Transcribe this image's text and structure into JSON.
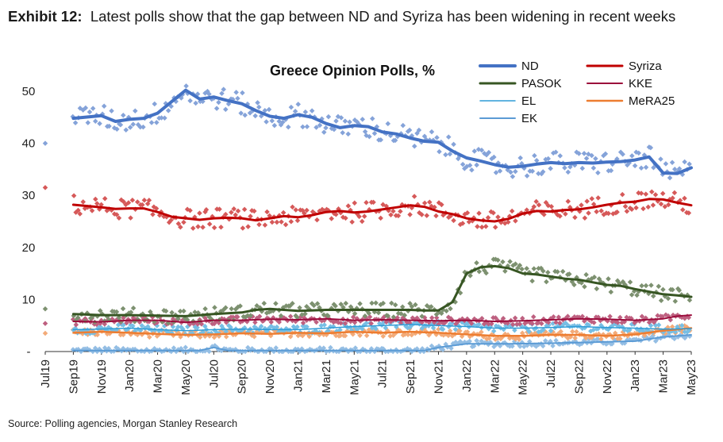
{
  "header": {
    "exhibit_label": "Exhibit 12:",
    "exhibit_title": "Latest polls show that the gap between ND and Syriza has been widening in recent weeks"
  },
  "source": "Source: Polling agencies, Morgan Stanley Research",
  "chart_data": {
    "type": "line",
    "title": "Greece Opinion Polls, %",
    "xlabel": "",
    "ylabel": "",
    "ylim": [
      0,
      50
    ],
    "y_ticks": [
      "-",
      "10",
      "20",
      "30",
      "40",
      "50"
    ],
    "x_range": [
      "2019-07",
      "2023-05"
    ],
    "x_tick_labels": [
      "Jul19",
      "Sep19",
      "Nov19",
      "Jan20",
      "Mar20",
      "May20",
      "Jul20",
      "Sep20",
      "Nov20",
      "Jan21",
      "Mar21",
      "May21",
      "Jul21",
      "Sep21",
      "Nov21",
      "Jan22",
      "Mar22",
      "May22",
      "Jul22",
      "Sep22",
      "Nov22",
      "Jan23",
      "Mar23",
      "May23"
    ],
    "grid": false,
    "legend_position": "top-right",
    "note": "Lines are moving averages; diamond markers are individual polls",
    "series": [
      {
        "name": "ND",
        "color": "#4472C4",
        "points": [
          [
            "2019-09",
            44.8
          ],
          [
            "2019-11",
            45.3
          ],
          [
            "2019-12",
            44.2
          ],
          [
            "2020-01",
            44.6
          ],
          [
            "2020-02",
            44.8
          ],
          [
            "2020-03",
            45.8
          ],
          [
            "2020-04",
            48.0
          ],
          [
            "2020-05",
            50.2
          ],
          [
            "2020-06",
            48.5
          ],
          [
            "2020-07",
            48.9
          ],
          [
            "2020-08",
            48.2
          ],
          [
            "2020-09",
            47.6
          ],
          [
            "2020-10",
            46.3
          ],
          [
            "2020-11",
            45.2
          ],
          [
            "2020-12",
            44.8
          ],
          [
            "2021-01",
            45.5
          ],
          [
            "2021-02",
            45.0
          ],
          [
            "2021-03",
            43.8
          ],
          [
            "2021-04",
            43.0
          ],
          [
            "2021-05",
            43.4
          ],
          [
            "2021-06",
            43.2
          ],
          [
            "2021-07",
            42.2
          ],
          [
            "2021-08",
            41.8
          ],
          [
            "2021-09",
            41.0
          ],
          [
            "2021-10",
            40.4
          ],
          [
            "2021-11",
            40.2
          ],
          [
            "2021-12",
            38.5
          ],
          [
            "2022-01",
            37.2
          ],
          [
            "2022-02",
            36.6
          ],
          [
            "2022-03",
            35.9
          ],
          [
            "2022-04",
            35.4
          ],
          [
            "2022-05",
            35.6
          ],
          [
            "2022-06",
            36.0
          ],
          [
            "2022-07",
            36.3
          ],
          [
            "2022-08",
            36.1
          ],
          [
            "2022-09",
            36.3
          ],
          [
            "2022-10",
            36.2
          ],
          [
            "2022-11",
            36.4
          ],
          [
            "2022-12",
            36.5
          ],
          [
            "2023-01",
            36.8
          ],
          [
            "2023-02",
            37.4
          ],
          [
            "2023-03",
            34.3
          ],
          [
            "2023-04",
            34.2
          ],
          [
            "2023-05",
            35.3
          ]
        ]
      },
      {
        "name": "Syriza",
        "color": "#C00000",
        "points": [
          [
            "2019-09",
            28.2
          ],
          [
            "2019-11",
            27.7
          ],
          [
            "2019-12",
            27.4
          ],
          [
            "2020-01",
            27.5
          ],
          [
            "2020-02",
            27.5
          ],
          [
            "2020-03",
            26.8
          ],
          [
            "2020-04",
            25.9
          ],
          [
            "2020-05",
            25.6
          ],
          [
            "2020-06",
            25.3
          ],
          [
            "2020-07",
            25.6
          ],
          [
            "2020-08",
            25.7
          ],
          [
            "2020-09",
            25.6
          ],
          [
            "2020-10",
            25.2
          ],
          [
            "2020-11",
            25.6
          ],
          [
            "2020-12",
            26.0
          ],
          [
            "2021-01",
            25.8
          ],
          [
            "2021-02",
            26.2
          ],
          [
            "2021-03",
            26.8
          ],
          [
            "2021-04",
            27.0
          ],
          [
            "2021-05",
            26.7
          ],
          [
            "2021-06",
            26.9
          ],
          [
            "2021-07",
            27.3
          ],
          [
            "2021-08",
            27.7
          ],
          [
            "2021-09",
            28.1
          ],
          [
            "2021-10",
            27.8
          ],
          [
            "2021-11",
            26.9
          ],
          [
            "2021-12",
            26.4
          ],
          [
            "2022-01",
            25.6
          ],
          [
            "2022-02",
            25.2
          ],
          [
            "2022-03",
            25.0
          ],
          [
            "2022-04",
            25.5
          ],
          [
            "2022-05",
            26.5
          ],
          [
            "2022-06",
            27.0
          ],
          [
            "2022-07",
            26.9
          ],
          [
            "2022-08",
            27.2
          ],
          [
            "2022-09",
            27.3
          ],
          [
            "2022-10",
            27.7
          ],
          [
            "2022-11",
            28.2
          ],
          [
            "2022-12",
            28.6
          ],
          [
            "2023-01",
            28.8
          ],
          [
            "2023-02",
            29.3
          ],
          [
            "2023-03",
            29.2
          ],
          [
            "2023-04",
            28.6
          ],
          [
            "2023-05",
            28.1
          ]
        ]
      },
      {
        "name": "PASOK",
        "color": "#375623",
        "points": [
          [
            "2019-09",
            7.2
          ],
          [
            "2019-11",
            7.0
          ],
          [
            "2020-01",
            7.0
          ],
          [
            "2020-03",
            6.9
          ],
          [
            "2020-05",
            6.8
          ],
          [
            "2020-07",
            7.2
          ],
          [
            "2020-09",
            7.5
          ],
          [
            "2020-10",
            8.0
          ],
          [
            "2020-11",
            8.2
          ],
          [
            "2021-01",
            7.8
          ],
          [
            "2021-03",
            8.0
          ],
          [
            "2021-05",
            8.0
          ],
          [
            "2021-07",
            8.0
          ],
          [
            "2021-09",
            8.0
          ],
          [
            "2021-10",
            7.9
          ],
          [
            "2021-11",
            7.9
          ],
          [
            "2021-12",
            9.5
          ],
          [
            "2022-01",
            15.0
          ],
          [
            "2022-02",
            16.2
          ],
          [
            "2022-03",
            16.4
          ],
          [
            "2022-04",
            16.0
          ],
          [
            "2022-05",
            15.0
          ],
          [
            "2022-06",
            14.8
          ],
          [
            "2022-07",
            14.4
          ],
          [
            "2022-08",
            14.0
          ],
          [
            "2022-09",
            13.8
          ],
          [
            "2022-10",
            13.3
          ],
          [
            "2022-11",
            12.8
          ],
          [
            "2022-12",
            12.6
          ],
          [
            "2023-01",
            12.0
          ],
          [
            "2023-02",
            11.5
          ],
          [
            "2023-03",
            11.0
          ],
          [
            "2023-04",
            10.8
          ],
          [
            "2023-05",
            10.5
          ]
        ]
      },
      {
        "name": "KKE",
        "color": "#9B0B3B",
        "points": [
          [
            "2019-09",
            5.8
          ],
          [
            "2019-11",
            5.7
          ],
          [
            "2020-01",
            6.0
          ],
          [
            "2020-03",
            6.0
          ],
          [
            "2020-05",
            5.6
          ],
          [
            "2020-07",
            6.0
          ],
          [
            "2020-09",
            6.0
          ],
          [
            "2020-11",
            6.2
          ],
          [
            "2021-01",
            6.1
          ],
          [
            "2021-03",
            6.3
          ],
          [
            "2021-05",
            6.0
          ],
          [
            "2021-07",
            6.1
          ],
          [
            "2021-09",
            6.0
          ],
          [
            "2021-11",
            5.9
          ],
          [
            "2022-01",
            6.0
          ],
          [
            "2022-03",
            5.8
          ],
          [
            "2022-05",
            5.9
          ],
          [
            "2022-07",
            6.1
          ],
          [
            "2022-09",
            6.3
          ],
          [
            "2022-11",
            6.2
          ],
          [
            "2023-01",
            6.0
          ],
          [
            "2023-03",
            6.3
          ],
          [
            "2023-04",
            6.8
          ],
          [
            "2023-05",
            7.0
          ]
        ]
      },
      {
        "name": "EL",
        "color": "#2E9BD6",
        "points": [
          [
            "2019-09",
            4.2
          ],
          [
            "2019-11",
            4.3
          ],
          [
            "2020-01",
            4.5
          ],
          [
            "2020-03",
            4.2
          ],
          [
            "2020-05",
            4.0
          ],
          [
            "2020-07",
            4.2
          ],
          [
            "2020-09",
            4.3
          ],
          [
            "2020-11",
            4.2
          ],
          [
            "2021-01",
            4.2
          ],
          [
            "2021-03",
            4.5
          ],
          [
            "2021-05",
            4.8
          ],
          [
            "2021-07",
            5.0
          ],
          [
            "2021-09",
            5.2
          ],
          [
            "2021-11",
            5.0
          ],
          [
            "2022-01",
            4.8
          ],
          [
            "2022-03",
            4.5
          ],
          [
            "2022-05",
            4.5
          ],
          [
            "2022-07",
            4.6
          ],
          [
            "2022-09",
            4.8
          ],
          [
            "2022-11",
            4.6
          ],
          [
            "2023-01",
            4.5
          ],
          [
            "2023-03",
            4.3
          ],
          [
            "2023-05",
            4.4
          ]
        ]
      },
      {
        "name": "MeRA25",
        "color": "#ED7D31",
        "points": [
          [
            "2019-09",
            3.6
          ],
          [
            "2019-11",
            3.8
          ],
          [
            "2020-01",
            3.6
          ],
          [
            "2020-03",
            3.4
          ],
          [
            "2020-05",
            3.2
          ],
          [
            "2020-07",
            3.3
          ],
          [
            "2020-09",
            3.5
          ],
          [
            "2020-11",
            3.4
          ],
          [
            "2021-01",
            3.6
          ],
          [
            "2021-03",
            3.5
          ],
          [
            "2021-05",
            3.8
          ],
          [
            "2021-07",
            3.6
          ],
          [
            "2021-09",
            3.8
          ],
          [
            "2021-11",
            3.6
          ],
          [
            "2022-01",
            3.3
          ],
          [
            "2022-03",
            3.0
          ],
          [
            "2022-05",
            3.0
          ],
          [
            "2022-07",
            3.2
          ],
          [
            "2022-09",
            3.2
          ],
          [
            "2022-11",
            3.0
          ],
          [
            "2023-01",
            3.3
          ],
          [
            "2023-03",
            4.0
          ],
          [
            "2023-05",
            4.5
          ]
        ]
      },
      {
        "name": "EK",
        "color": "#5B9BD5",
        "points": [
          [
            "2019-09",
            0.2
          ],
          [
            "2020-06",
            0.2
          ],
          [
            "2020-07",
            0.8
          ],
          [
            "2020-08",
            0.2
          ],
          [
            "2021-10",
            0.2
          ],
          [
            "2021-11",
            0.8
          ],
          [
            "2022-01",
            1.5
          ],
          [
            "2022-04",
            1.5
          ],
          [
            "2022-07",
            1.6
          ],
          [
            "2022-10",
            1.8
          ],
          [
            "2023-01",
            2.0
          ],
          [
            "2023-03",
            2.8
          ],
          [
            "2023-05",
            3.2
          ]
        ]
      }
    ]
  }
}
